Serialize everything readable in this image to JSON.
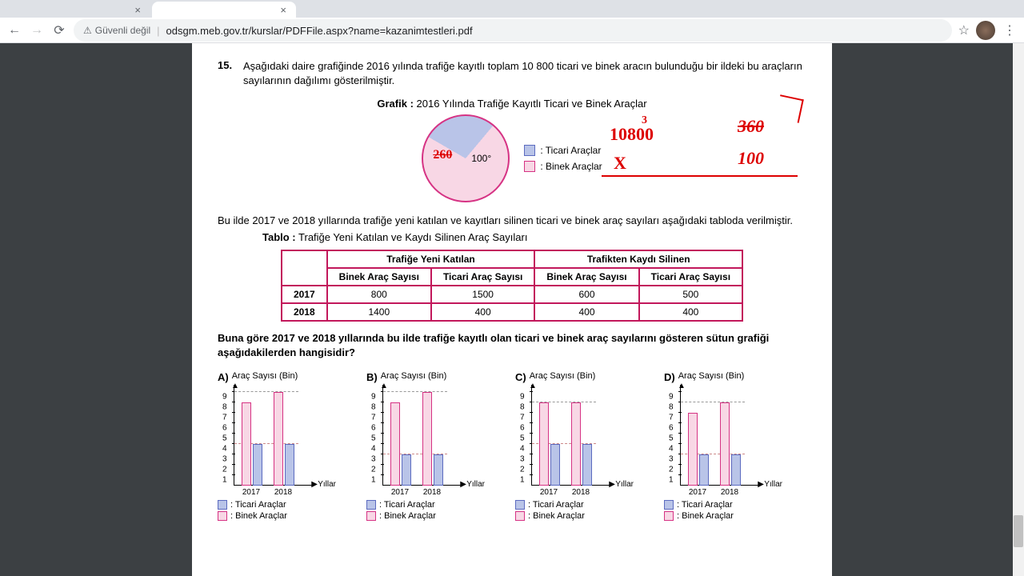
{
  "browser": {
    "tab1": "",
    "tab2": "",
    "url_warn": "Güvenli değil",
    "url": "odsgm.meb.gov.tr/kurslar/PDFFile.aspx?name=kazanimtestleri.pdf"
  },
  "question": {
    "number": "15.",
    "text": "Aşağıdaki daire grafiğinde 2016 yılında trafiğe kayıtlı toplam 10 800 ticari ve binek aracın bulunduğu bir ildeki bu araçların sayılarının dağılımı gösterilmiştir.",
    "chart_label": "Grafik :",
    "chart_title": "2016 Yılında Trafiğe Kayıtlı Ticari ve Binek Araçlar",
    "para2": "Bu ilde 2017 ve 2018 yıllarında trafiğe yeni katılan ve kayıtları silinen ticari ve binek araç sayıları aşağıdaki tabloda verilmiştir.",
    "table_label": "Tablo :",
    "table_title": "Trafiğe Yeni Katılan ve Kaydı Silinen Araç Sayıları",
    "final": "Buna göre 2017 ve 2018 yıllarında bu ilde trafiğe kayıtlı olan ticari ve binek araç sayılarını gösteren sütun grafiği aşağıdakilerden hangisidir?"
  },
  "pie": {
    "angle_label": "100°",
    "slice1_color": "#b9c4e8",
    "slice1_border": "#5c6bc0",
    "slice2_color": "#f8d7e5",
    "slice2_border": "#d63384",
    "legend1": ": Ticari Araçlar",
    "legend2": ": Binek Araçlar",
    "hand1": "260",
    "hand2": "10800",
    "hand2_sup": "3",
    "hand3": "X",
    "hand4": "360",
    "hand5": "100"
  },
  "table": {
    "h1": "Trafiğe Yeni Katılan",
    "h2": "Trafikten Kaydı Silinen",
    "c1": "Binek Araç Sayısı",
    "c2": "Ticari Araç Sayısı",
    "c3": "Binek Araç Sayısı",
    "c4": "Ticari Araç Sayısı",
    "rows": [
      {
        "yr": "2017",
        "v1": "800",
        "v2": "1500",
        "v3": "600",
        "v4": "500"
      },
      {
        "yr": "2018",
        "v1": "1400",
        "v2": "400",
        "v3": "400",
        "v4": "400"
      }
    ]
  },
  "barcharts": {
    "ylabel": "Araç Sayısı\n(Bin)",
    "xlabel": "Yıllar",
    "yticks": [
      1,
      2,
      3,
      4,
      5,
      6,
      7,
      8,
      9
    ],
    "xticks": [
      "2017",
      "2018"
    ],
    "ticari_fill": "#b9c4e8",
    "ticari_border": "#5c6bc0",
    "binek_fill": "#f8d7e5",
    "binek_border": "#d63384",
    "legend1": ": Ticari Araçlar",
    "legend2": ": Binek Araçlar",
    "options": [
      {
        "label": "A)",
        "bars": [
          {
            "x": "2017",
            "binek": 8,
            "ticari": 4
          },
          {
            "x": "2018",
            "binek": 9,
            "ticari": 4
          }
        ]
      },
      {
        "label": "B)",
        "bars": [
          {
            "x": "2017",
            "binek": 8,
            "ticari": 3
          },
          {
            "x": "2018",
            "binek": 9,
            "ticari": 3
          }
        ]
      },
      {
        "label": "C)",
        "bars": [
          {
            "x": "2017",
            "binek": 8,
            "ticari": 4
          },
          {
            "x": "2018",
            "binek": 8,
            "ticari": 4
          }
        ]
      },
      {
        "label": "D)",
        "bars": [
          {
            "x": "2017",
            "binek": 7,
            "ticari": 3
          },
          {
            "x": "2018",
            "binek": 8,
            "ticari": 3
          }
        ]
      }
    ]
  },
  "scroll": {
    "thumb_top": 590,
    "thumb_height": 40
  }
}
